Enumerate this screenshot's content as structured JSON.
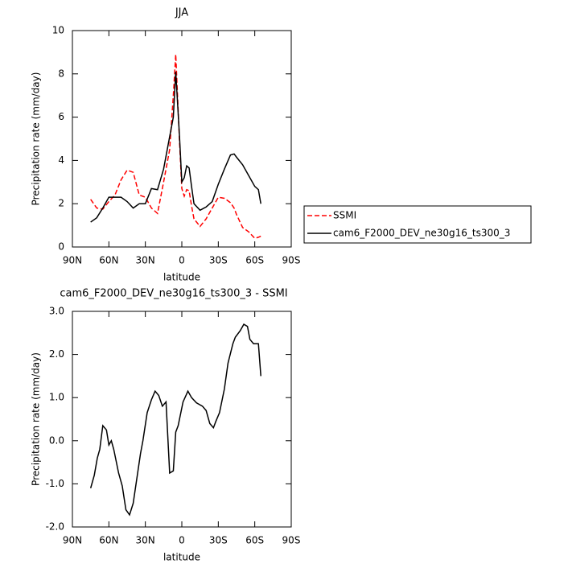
{
  "chart_data": [
    {
      "type": "line",
      "title": "JJA",
      "xlabel": "latitude",
      "ylabel": "Precipitation rate (mm/day)",
      "x": [
        75,
        70,
        65,
        60,
        55,
        50,
        45,
        40,
        35,
        30,
        25,
        20,
        15,
        10,
        7,
        5,
        2,
        0,
        -2,
        -4,
        -6,
        -8,
        -10,
        -15,
        -20,
        -25,
        -30,
        -35,
        -40,
        -43,
        -45,
        -50,
        -55,
        -60,
        -63,
        -65
      ],
      "series": [
        {
          "name": "SSMI",
          "color": "#ff0000",
          "linestyle": "dashed",
          "values": [
            2.2,
            1.8,
            1.75,
            2.1,
            2.4,
            3.1,
            3.55,
            3.45,
            2.4,
            2.3,
            1.8,
            1.55,
            3.0,
            4.5,
            7.0,
            8.9,
            5.0,
            2.7,
            2.35,
            2.65,
            2.6,
            1.9,
            1.3,
            0.95,
            1.3,
            1.8,
            2.3,
            2.25,
            2.05,
            1.8,
            1.5,
            0.9,
            0.7,
            0.4,
            0.45,
            0.5
          ]
        },
        {
          "name": "cam6_F2000_DEV_ne30g16_ts300_3",
          "color": "#000000",
          "linestyle": "solid",
          "values": [
            1.15,
            1.35,
            1.8,
            2.3,
            2.3,
            2.3,
            2.1,
            1.8,
            2.0,
            2.0,
            2.7,
            2.65,
            3.6,
            5.1,
            6.0,
            8.1,
            5.2,
            3.0,
            3.2,
            3.75,
            3.65,
            2.8,
            2.0,
            1.7,
            1.85,
            2.1,
            2.9,
            3.6,
            4.25,
            4.3,
            4.15,
            3.8,
            3.3,
            2.8,
            2.65,
            2.0
          ]
        }
      ],
      "xlim": [
        90,
        -90
      ],
      "xticks": [
        {
          "value": 90,
          "label": "90N"
        },
        {
          "value": 60,
          "label": "60N"
        },
        {
          "value": 30,
          "label": "30N"
        },
        0,
        {
          "value": -30,
          "label": "30S"
        },
        {
          "value": -60,
          "label": "60S"
        },
        {
          "value": -90,
          "label": "90S"
        }
      ],
      "ylim": [
        0,
        10
      ],
      "yticks": [
        0,
        2,
        4,
        6,
        8,
        10
      ],
      "grid": false,
      "legend": "right"
    },
    {
      "type": "line",
      "title": "cam6_F2000_DEV_ne30g16_ts300_3 - SSMI",
      "xlabel": "latitude",
      "ylabel": "Precipitation rate (mm/day)",
      "x": [
        75,
        72,
        69.5,
        67.5,
        65,
        62,
        60,
        58,
        56,
        52,
        49,
        46,
        43,
        40,
        34,
        32,
        28.5,
        25,
        22,
        19,
        16,
        13,
        10,
        7,
        5,
        3,
        -1,
        -5,
        -8,
        -12,
        -17,
        -20,
        -23,
        -26,
        -28,
        -31,
        -35,
        -38,
        -42,
        -44,
        -48,
        -51,
        -54,
        -56,
        -59,
        -63,
        -65
      ],
      "series": [
        {
          "name": "cam6_F2000_DEV_ne30g16_ts300_3 - SSMI",
          "color": "#000000",
          "linestyle": "solid",
          "values": [
            -1.1,
            -0.8,
            -0.4,
            -0.2,
            0.35,
            0.25,
            -0.1,
            0.0,
            -0.2,
            -0.75,
            -1.05,
            -1.6,
            -1.72,
            -1.45,
            -0.3,
            0.0,
            0.65,
            0.95,
            1.15,
            1.05,
            0.8,
            0.9,
            -0.75,
            -0.7,
            0.2,
            0.35,
            0.9,
            1.15,
            1.0,
            0.88,
            0.8,
            0.7,
            0.4,
            0.3,
            0.45,
            0.65,
            1.2,
            1.8,
            2.25,
            2.4,
            2.55,
            2.7,
            2.65,
            2.35,
            2.25,
            2.25,
            1.5
          ]
        }
      ],
      "xlim": [
        90,
        -90
      ],
      "xticks": [
        {
          "value": 90,
          "label": "90N"
        },
        {
          "value": 60,
          "label": "60N"
        },
        {
          "value": 30,
          "label": "30N"
        },
        0,
        {
          "value": -30,
          "label": "30S"
        },
        {
          "value": -60,
          "label": "60S"
        },
        {
          "value": -90,
          "label": "90S"
        }
      ],
      "ylim": [
        -2,
        3
      ],
      "yticks": [
        {
          "value": -2,
          "label": "-2.0"
        },
        {
          "value": -1,
          "label": "-1.0"
        },
        {
          "value": 0,
          "label": "0.0"
        },
        {
          "value": 1,
          "label": "1.0"
        },
        {
          "value": 2,
          "label": "2.0"
        },
        {
          "value": 3,
          "label": "3.0"
        }
      ],
      "grid": false
    }
  ]
}
